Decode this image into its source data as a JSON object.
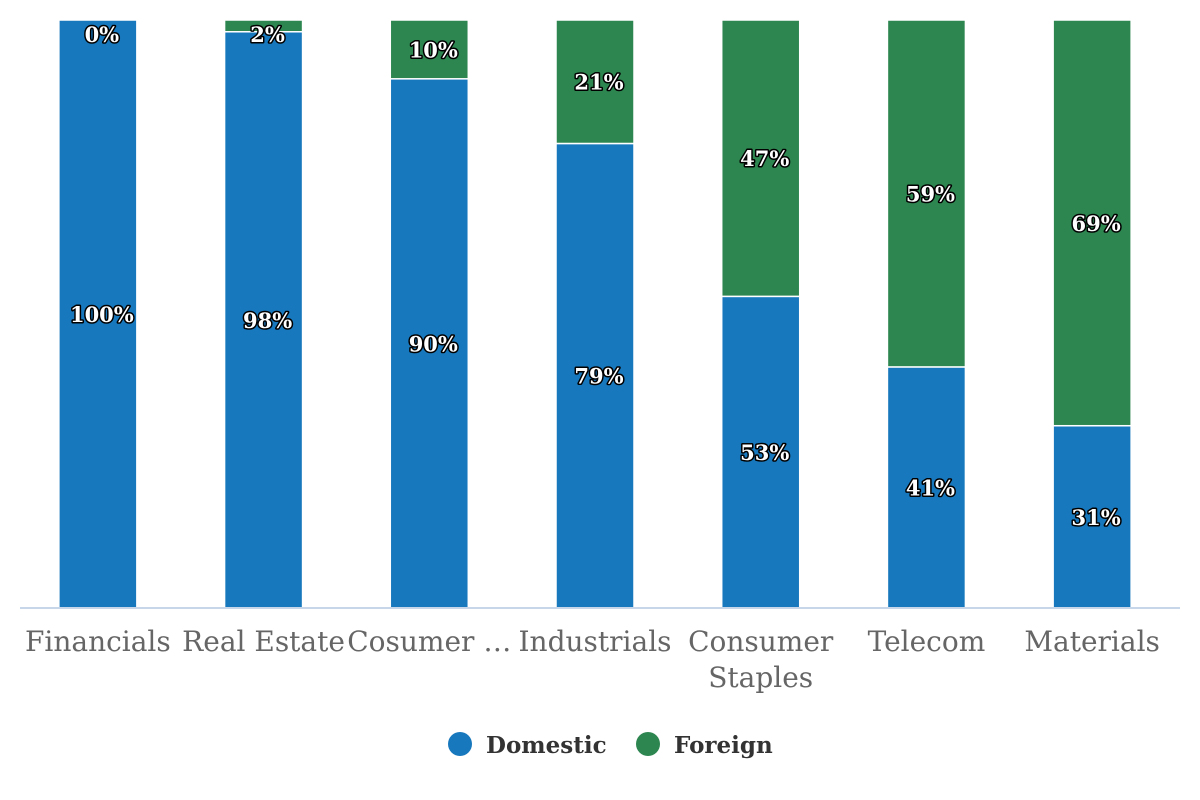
{
  "chart_data": {
    "type": "bar",
    "stacked": true,
    "normalized_percent": true,
    "categories": [
      "Financials",
      "Real Estate",
      "Cosumer …",
      "Industrials",
      "Consumer Staples",
      "Telecom",
      "Materials"
    ],
    "series": [
      {
        "name": "Domestic",
        "color": "#1878bd",
        "values": [
          100,
          98,
          90,
          79,
          53,
          41,
          31
        ]
      },
      {
        "name": "Foreign",
        "color": "#2d8650",
        "values": [
          0,
          2,
          10,
          21,
          47,
          59,
          69
        ]
      }
    ],
    "value_format": "percent",
    "ylim": [
      0,
      100
    ],
    "grid": false,
    "legend_position": "bottom",
    "axis_color": "#c8d6ea"
  }
}
